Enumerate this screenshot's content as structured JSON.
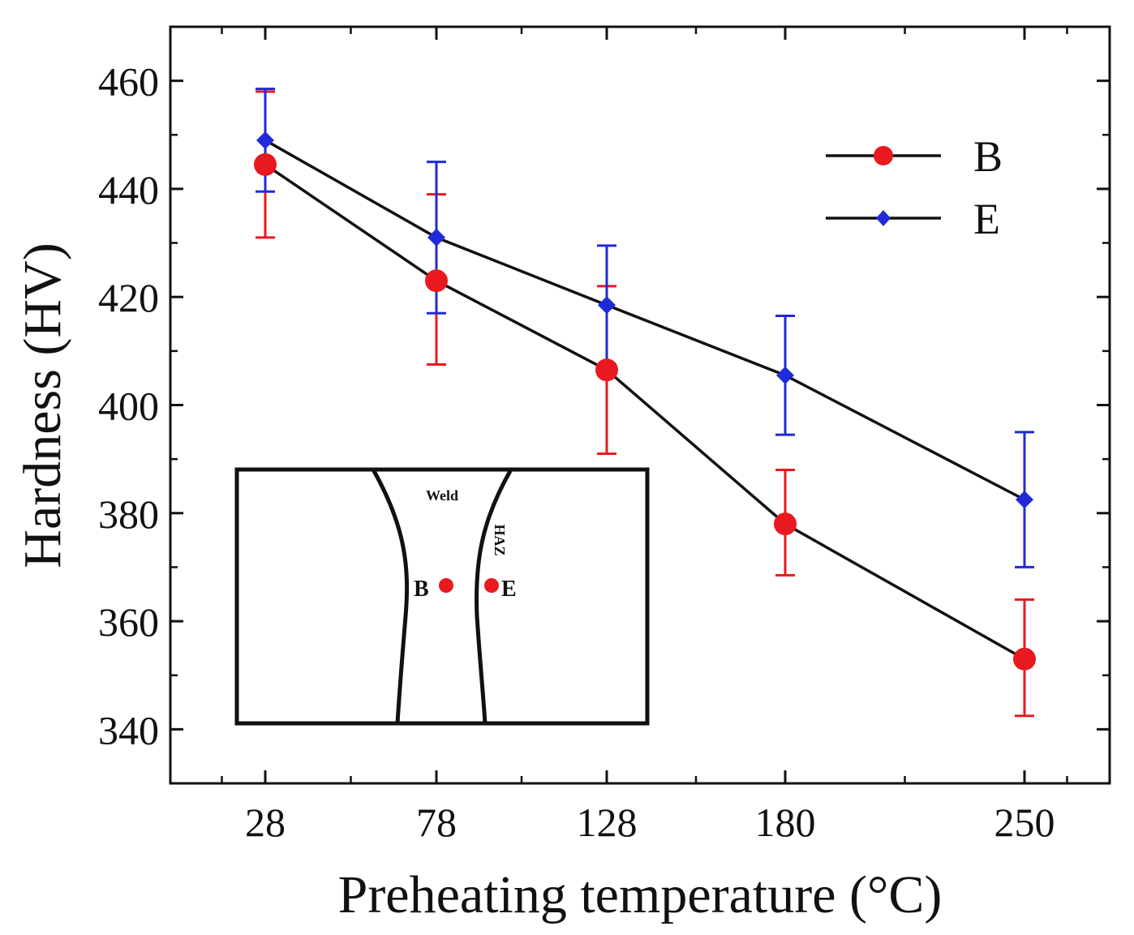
{
  "chart_data": {
    "type": "line",
    "xlabel": "Preheating temperature (°C)",
    "ylabel": "Hardness (HV)",
    "categories": [
      "28",
      "78",
      "128",
      "180",
      "250"
    ],
    "x": [
      28,
      78,
      128,
      180,
      250
    ],
    "ylim": [
      330,
      470
    ],
    "yticks": [
      340,
      360,
      380,
      400,
      420,
      440,
      460
    ],
    "grid": false,
    "legend_position": "top-right",
    "series": [
      {
        "name": "B",
        "color": "#e8191f",
        "marker": "circle",
        "values": [
          444.5,
          423,
          406.5,
          378,
          353
        ],
        "error_low": [
          431,
          407.5,
          391,
          368.5,
          342.5
        ],
        "error_high": [
          458,
          439,
          422,
          388,
          364
        ]
      },
      {
        "name": "E",
        "color": "#1f2bd6",
        "marker": "diamond",
        "values": [
          449,
          431,
          418.5,
          405.5,
          382.5
        ],
        "error_low": [
          439.5,
          417,
          407.5,
          394.5,
          370
        ],
        "error_high": [
          458.5,
          445,
          429.5,
          416.5,
          395
        ]
      }
    ],
    "inset": {
      "weld_label": "Weld",
      "haz_label": "HAZ",
      "point_b_label": "B",
      "point_e_label": "E",
      "point_color": "#e8191f"
    }
  }
}
